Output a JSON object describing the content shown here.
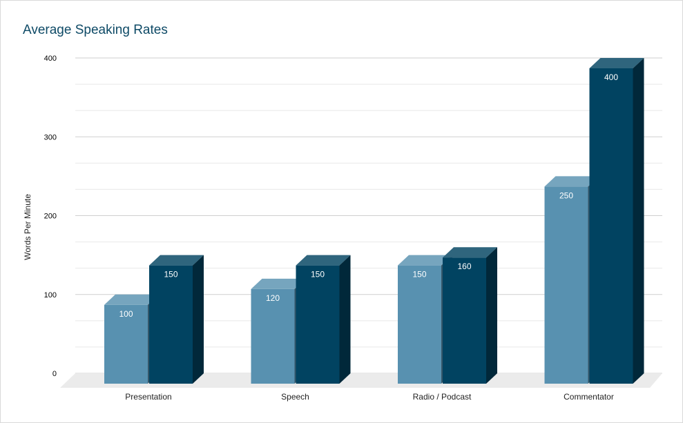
{
  "chart_data": {
    "type": "bar",
    "title": "Average Speaking Rates",
    "xlabel": "",
    "ylabel": "Words Per Minute",
    "categories": [
      "Presentation",
      "Speech",
      "Radio / Podcast",
      "Commentator"
    ],
    "series": [
      {
        "values": [
          100,
          120,
          150,
          250
        ],
        "color": "#5891b0"
      },
      {
        "values": [
          150,
          150,
          160,
          400
        ],
        "color": "#014361"
      }
    ],
    "ylim": [
      0,
      400
    ],
    "yticks": [
      0,
      100,
      200,
      300,
      400
    ],
    "grid": true,
    "style": "3d"
  }
}
